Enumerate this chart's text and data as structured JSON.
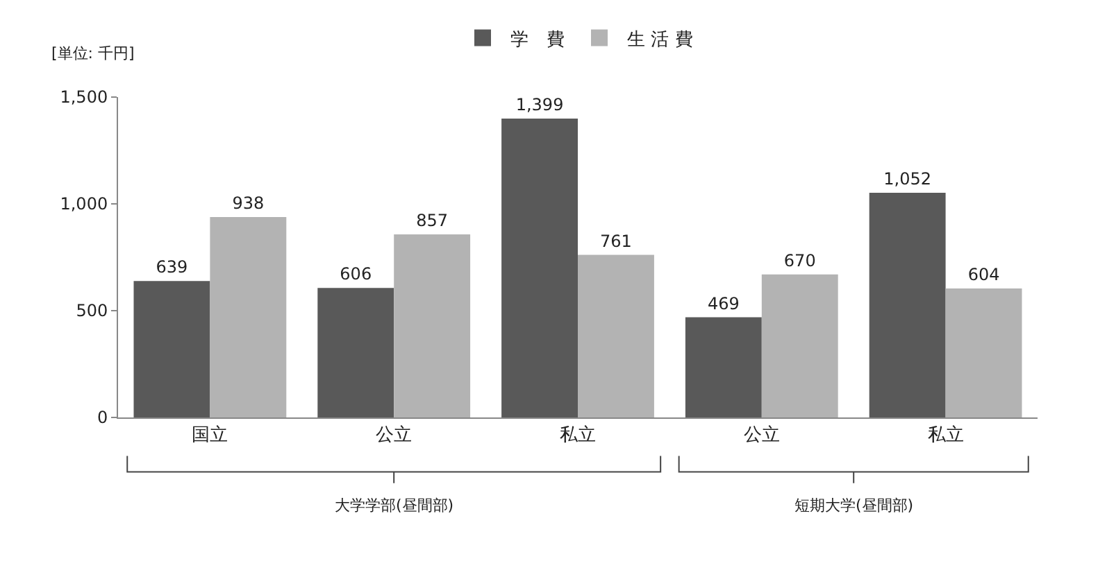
{
  "chart_data": {
    "type": "bar",
    "ylabel": "[単位: 千円]",
    "categories": [
      "国立",
      "公立",
      "私立",
      "公立",
      "私立"
    ],
    "series": [
      {
        "name": "学　費",
        "color": "#595959",
        "values": [
          639,
          606,
          1399,
          469,
          1052
        ],
        "value_labels": [
          "639",
          "606",
          "1,399",
          "469",
          "1,052"
        ]
      },
      {
        "name": "生 活 費",
        "color": "#b3b3b3",
        "values": [
          938,
          857,
          761,
          670,
          604
        ],
        "value_labels": [
          "938",
          "857",
          "761",
          "670",
          "604"
        ]
      }
    ],
    "ylim": [
      0,
      1500
    ],
    "yticks": [
      0,
      500,
      {
        "value": 1000,
        "label": "1,000"
      },
      {
        "value": 1500,
        "label": "1,500"
      }
    ],
    "grid": false,
    "legend": "top",
    "annotations": [
      "大学学部(昼間部)",
      "短期大学(昼間部)"
    ]
  }
}
